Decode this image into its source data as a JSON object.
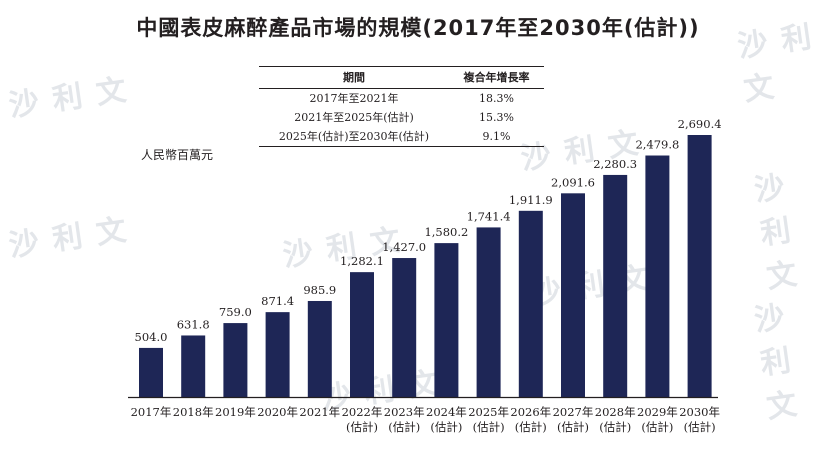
{
  "title": "中國表皮麻醉產品市場的規模(2017年至2030年(估計))",
  "cagr_table": {
    "headers": [
      "期間",
      "複合年增長率"
    ],
    "rows": [
      {
        "period": "2017年至2021年",
        "rate": "18.3%"
      },
      {
        "period": "2021年至2025年(估計)",
        "rate": "15.3%"
      },
      {
        "period": "2025年(估計)至2030年(估計)",
        "rate": "9.1%"
      }
    ]
  },
  "watermark_text": "沙利文",
  "chart_data": {
    "type": "bar",
    "title": "中國表皮麻醉產品市場的規模(2017年至2030年(估計))",
    "ylabel": "人民幣百萬元",
    "xlabel": "",
    "ylim": [
      0,
      2800
    ],
    "grid": false,
    "legend": "none",
    "bar_color": "#1e2656",
    "categories": [
      "2017年",
      "2018年",
      "2019年",
      "2020年",
      "2021年",
      "2022年",
      "2023年",
      "2024年",
      "2025年",
      "2026年",
      "2027年",
      "2028年",
      "2029年",
      "2030年"
    ],
    "category_sublabels": [
      "",
      "",
      "",
      "",
      "",
      "(估計)",
      "(估計)",
      "(估計)",
      "(估計)",
      "(估計)",
      "(估計)",
      "(估計)",
      "(估計)",
      "(估計)"
    ],
    "values": [
      504.0,
      631.8,
      759.0,
      871.4,
      985.9,
      1282.1,
      1427.0,
      1580.2,
      1741.4,
      1911.9,
      2091.6,
      2280.3,
      2479.8,
      2690.4
    ],
    "value_labels": [
      "504.0",
      "631.8",
      "759.0",
      "871.4",
      "985.9",
      "1,282.1",
      "1,427.0",
      "1,580.2",
      "1,741.4",
      "1,911.9",
      "2,091.6",
      "2,280.3",
      "2,479.8",
      "2,690.4"
    ]
  }
}
